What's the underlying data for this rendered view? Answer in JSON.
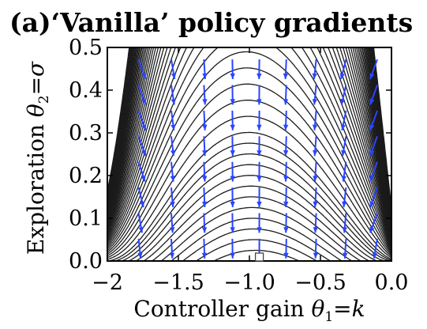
{
  "chart_data": {
    "type": "quiver-contour",
    "title": "(a)‘Vanilla’ policy gradients",
    "xlabel": {
      "prefix": "Controller gain ",
      "symbol": "θ",
      "subscript": "1",
      "suffix": "=k"
    },
    "ylabel": {
      "prefix": "Exploration ",
      "symbol": "θ",
      "subscript": "2",
      "suffix": "=σ"
    },
    "xlim": [
      -2.0,
      0.0
    ],
    "ylim": [
      0.0,
      0.5
    ],
    "x_ticks": [
      "−2",
      "−1.5",
      "−1.0",
      "−0.5",
      "0.0"
    ],
    "x_tick_values": [
      -2.0,
      -1.5,
      -1.0,
      -0.5,
      0.0
    ],
    "y_ticks": [
      "0.0",
      "0.1",
      "0.2",
      "0.3",
      "0.4",
      "0.5"
    ],
    "y_tick_values": [
      0.0,
      0.1,
      0.2,
      0.3,
      0.4,
      0.5
    ],
    "optimum_marker": {
      "x": -0.93,
      "y": 0.0,
      "shape": "square"
    },
    "contour_color": "#1a1a1a",
    "arrow_color": "#2a45ff",
    "contour_levels": [
      0.16,
      0.2,
      0.24,
      0.28,
      0.32,
      0.36,
      0.4,
      0.44,
      0.48,
      0.52,
      0.56,
      0.6
    ],
    "arrow_columns_x": [
      -1.78,
      -1.55,
      -1.32,
      -1.12,
      -0.93,
      -0.74,
      -0.53,
      -0.32,
      -0.1
    ],
    "arrow_rows_y": [
      0.03,
      0.09,
      0.15,
      0.21,
      0.27,
      0.33,
      0.39,
      0.45
    ]
  }
}
